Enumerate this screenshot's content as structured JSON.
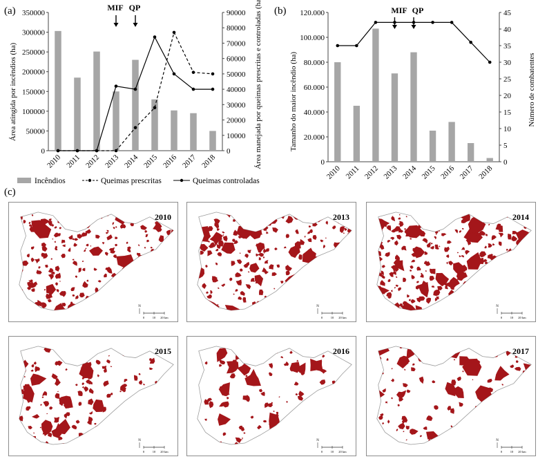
{
  "panels": {
    "a": "(a)",
    "b": "(b)",
    "c": "(c)"
  },
  "annotations": {
    "mif": "MIF",
    "qp": "QP"
  },
  "legend": {
    "incendios": "Incêndios",
    "queimas_prescritas": "Queimas prescritas",
    "queimas_controladas": "Queimas controladas"
  },
  "chart_data": [
    {
      "type": "bar",
      "panel": "(a)",
      "categories": [
        "2010",
        "2011",
        "2012",
        "2013",
        "2014",
        "2015",
        "2016",
        "2017",
        "2018"
      ],
      "series": [
        {
          "name": "Incêndios",
          "type": "bar",
          "axis": "left",
          "values": [
            303000,
            185000,
            251000,
            150000,
            230000,
            130000,
            102000,
            95000,
            50000
          ]
        },
        {
          "name": "Queimas prescritas",
          "type": "line",
          "style": "dashed",
          "axis": "right",
          "values": [
            0,
            0,
            0,
            0,
            15000,
            28000,
            77000,
            51000,
            50000
          ]
        },
        {
          "name": "Queimas controladas",
          "type": "line",
          "style": "solid",
          "axis": "right",
          "values": [
            0,
            0,
            0,
            42000,
            40000,
            74000,
            50000,
            40000,
            40000
          ]
        }
      ],
      "ylabel": "Área atingida por incêndios (ha)",
      "ylabel_right": "Área manejada por queimas prescritas e controladas (ha)",
      "ylim": [
        0,
        350000
      ],
      "ylim_right": [
        0,
        90000
      ],
      "yticks": [
        "0",
        "50000",
        "100000",
        "150000",
        "200000",
        "250000",
        "300000",
        "350000"
      ],
      "yticks_right": [
        "0",
        "10000",
        "20000",
        "30000",
        "40000",
        "50000",
        "60000",
        "70000",
        "80000",
        "90000"
      ],
      "markers": [
        {
          "label": "MIF",
          "x": "2013"
        },
        {
          "label": "QP",
          "x": "2014"
        }
      ]
    },
    {
      "type": "bar",
      "panel": "(b)",
      "categories": [
        "2010",
        "2011",
        "2012",
        "2013",
        "2014",
        "2015",
        "2016",
        "2017",
        "2018"
      ],
      "series": [
        {
          "type": "bar",
          "axis": "left",
          "values": [
            80000,
            45000,
            107000,
            71000,
            88000,
            25000,
            32000,
            15000,
            3000
          ]
        },
        {
          "type": "line",
          "axis": "right",
          "values": [
            35,
            35,
            42,
            42,
            42,
            42,
            42,
            36,
            30
          ]
        }
      ],
      "ylabel": "Tamanho do maior incêndio (ha)",
      "ylabel_right": "Número de combatentes",
      "ylim": [
        0,
        120000
      ],
      "ylim_right": [
        0,
        45
      ],
      "yticks": [
        "0",
        "20.000",
        "40.000",
        "60.000",
        "80.000",
        "100.000",
        "120.000"
      ],
      "yticks_right": [
        "0",
        "5",
        "10",
        "15",
        "20",
        "25",
        "30",
        "35",
        "40",
        "45"
      ],
      "markers": [
        {
          "label": "MIF",
          "x": "2013"
        },
        {
          "label": "QP",
          "x": "2014"
        }
      ]
    }
  ],
  "maps": [
    {
      "year": "2010",
      "burn": "high"
    },
    {
      "year": "2013",
      "burn": "high"
    },
    {
      "year": "2014",
      "burn": "very-high"
    },
    {
      "year": "2015",
      "burn": "medium"
    },
    {
      "year": "2016",
      "burn": "low"
    },
    {
      "year": "2017",
      "burn": "low"
    }
  ],
  "map_scale_labels": [
    "0",
    "10",
    "20 km"
  ],
  "colors": {
    "bar": "#a6a6a6",
    "burn": "#a4161a",
    "outline": "#9a9a9a",
    "frame": "#8c8c8c"
  }
}
